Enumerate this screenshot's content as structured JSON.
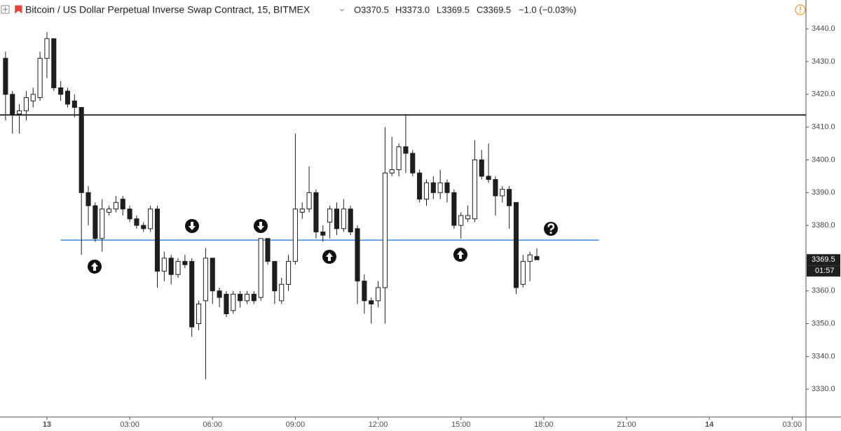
{
  "chart_data": {
    "type": "candlestick",
    "title": "Bitcoin / US Dollar Perpetual Inverse Swap Contract, 15, BITMEX",
    "ohlc_legend": [
      "O3370.5",
      "H3373.0",
      "L3369.5",
      "C3369.5",
      "−1.0 (−0.03%)"
    ],
    "x": [
      -1.5,
      -1.25,
      -1,
      -0.75,
      -0.5,
      -0.25,
      0,
      0.25,
      0.5,
      0.75,
      1,
      1.25,
      1.5,
      1.75,
      2,
      2.25,
      2.5,
      2.75,
      3,
      3.25,
      3.5,
      3.75,
      4,
      4.25,
      4.5,
      4.75,
      5,
      5.25,
      5.5,
      5.75,
      6,
      6.25,
      6.5,
      6.75,
      7,
      7.25,
      7.5,
      7.75,
      8,
      8.25,
      8.5,
      8.75,
      9,
      9.25,
      9.5,
      9.75,
      10,
      10.25,
      10.5,
      10.75,
      11,
      11.25,
      11.5,
      11.75,
      12,
      12.25,
      12.5,
      12.75,
      13,
      13.25,
      13.5,
      13.75,
      14,
      14.25,
      14.5,
      14.75,
      15,
      15.25,
      15.5,
      15.75,
      16,
      16.25,
      16.5,
      16.75,
      17,
      17.25,
      17.5,
      17.75
    ],
    "open": [
      3431,
      3420,
      3414,
      3415,
      3418,
      3419,
      3431,
      3437,
      3422,
      3421,
      3418,
      3416,
      3390,
      3386,
      3376,
      3384,
      3385,
      3388,
      3385,
      3382,
      3380,
      3379,
      3385,
      3366,
      3370,
      3365,
      3369,
      3369,
      3350,
      3357,
      3370,
      3360,
      3359,
      3354,
      3359,
      3357,
      3359,
      3358,
      3376,
      3369,
      3357,
      3362,
      3369,
      3384,
      3385,
      3390,
      3378,
      3381,
      3385,
      3379,
      3385,
      3379,
      3363,
      3357,
      3357,
      3361,
      3396,
      3397,
      3404,
      3402,
      3396,
      3388,
      3393,
      3390,
      3393,
      3390,
      3380,
      3382,
      3382,
      3400,
      3395,
      3394,
      3389,
      3391,
      3387,
      3362,
      3369,
      3370.5
    ],
    "high": [
      3433,
      3421,
      3417,
      3421,
      3422,
      3433,
      3439,
      3437,
      3424,
      3422,
      3420,
      3416,
      3392,
      3387,
      3388,
      3386,
      3389,
      3389,
      3386,
      3383,
      3381,
      3386,
      3386,
      3372,
      3371,
      3370,
      3371,
      3370,
      3357,
      3373,
      3370,
      3361,
      3360,
      3360,
      3360,
      3360,
      3360,
      3376,
      3376,
      3369,
      3364,
      3371,
      3408,
      3387,
      3398,
      3391,
      3380,
      3386,
      3387,
      3388,
      3386,
      3380,
      3365,
      3358,
      3363,
      3410,
      3407,
      3405,
      3414,
      3403,
      3397,
      3394,
      3395,
      3397,
      3394,
      3391,
      3384,
      3386,
      3406,
      3403,
      3405,
      3395,
      3392,
      3392,
      3387,
      3371,
      3372,
      3373
    ],
    "low": [
      3412,
      3408,
      3408,
      3412,
      3416,
      3418,
      3425,
      3421,
      3418,
      3416,
      3413,
      3371,
      3380,
      3375,
      3372,
      3383,
      3384,
      3383,
      3381,
      3379,
      3378,
      3378,
      3361,
      3363,
      3362,
      3364,
      3367,
      3346,
      3348,
      3333,
      3356,
      3355,
      3352,
      3353,
      3355,
      3356,
      3356,
      3357,
      3368,
      3356,
      3356,
      3360,
      3368,
      3382,
      3384,
      3376,
      3375,
      3376,
      3377,
      3378,
      3377,
      3356,
      3353,
      3350,
      3355,
      3350,
      3395,
      3395,
      3396,
      3395,
      3387,
      3386,
      3388,
      3388,
      3387,
      3379,
      3376,
      3381,
      3381,
      3394,
      3393,
      3383,
      3387,
      3379,
      3359,
      3361,
      3363,
      3369.5
    ],
    "close": [
      3420,
      3414,
      3415,
      3419,
      3420,
      3431,
      3437,
      3422,
      3420,
      3417,
      3416,
      3390,
      3386,
      3376,
      3385,
      3385,
      3387,
      3385,
      3382,
      3380,
      3379,
      3385,
      3366,
      3370,
      3365,
      3369,
      3368,
      3349,
      3356,
      3370,
      3360,
      3358,
      3353,
      3359,
      3357,
      3359,
      3357,
      3376,
      3369,
      3360,
      3362,
      3369,
      3385,
      3385,
      3390,
      3378,
      3377,
      3385,
      3379,
      3385,
      3378,
      3363,
      3357,
      3356,
      3361,
      3396,
      3397,
      3404,
      3402,
      3396,
      3388,
      3393,
      3390,
      3393,
      3390,
      3380,
      3383,
      3383,
      3400,
      3395,
      3394,
      3389,
      3391,
      3386,
      3361,
      3369,
      3371,
      3369.5
    ],
    "up_color": "#ffffff",
    "down_color": "#1e1e1e",
    "xlim": [
      -1.7,
      27.5
    ],
    "xticks": [
      {
        "value": 0,
        "label": "13"
      },
      {
        "value": 3,
        "label": "03:00"
      },
      {
        "value": 6,
        "label": "06:00"
      },
      {
        "value": 9,
        "label": "09:00"
      },
      {
        "value": 12,
        "label": "12:00"
      },
      {
        "value": 15,
        "label": "15:00"
      },
      {
        "value": 18,
        "label": "18:00"
      },
      {
        "value": 21,
        "label": "21:00"
      },
      {
        "value": 24,
        "label": "14"
      },
      {
        "value": 27,
        "label": "03:00"
      }
    ],
    "ylim": [
      3321.5,
      3448.8
    ],
    "yticks": [
      {
        "value": 3330,
        "label": "3330.0"
      },
      {
        "value": 3340,
        "label": "3340.0"
      },
      {
        "value": 3350,
        "label": "3350.0"
      },
      {
        "value": 3360,
        "label": "3360.0"
      },
      {
        "value": 3370,
        "label": "3370.0"
      },
      {
        "value": 3380,
        "label": "3380.0"
      },
      {
        "value": 3390,
        "label": "3390.0"
      },
      {
        "value": 3400,
        "label": "3400.0"
      },
      {
        "value": 3410,
        "label": "3410.0"
      },
      {
        "value": 3420,
        "label": "3420.0"
      },
      {
        "value": 3430,
        "label": "3430.0"
      },
      {
        "value": 3440,
        "label": "3440.0"
      }
    ],
    "hlines": [
      {
        "value": 3413.7,
        "color": "#000000"
      },
      {
        "value": 3375.5,
        "color": "#4a8fd9",
        "x": [
          0.5,
          20
        ]
      }
    ],
    "last_price": 3369.5,
    "countdown": "01:57"
  }
}
